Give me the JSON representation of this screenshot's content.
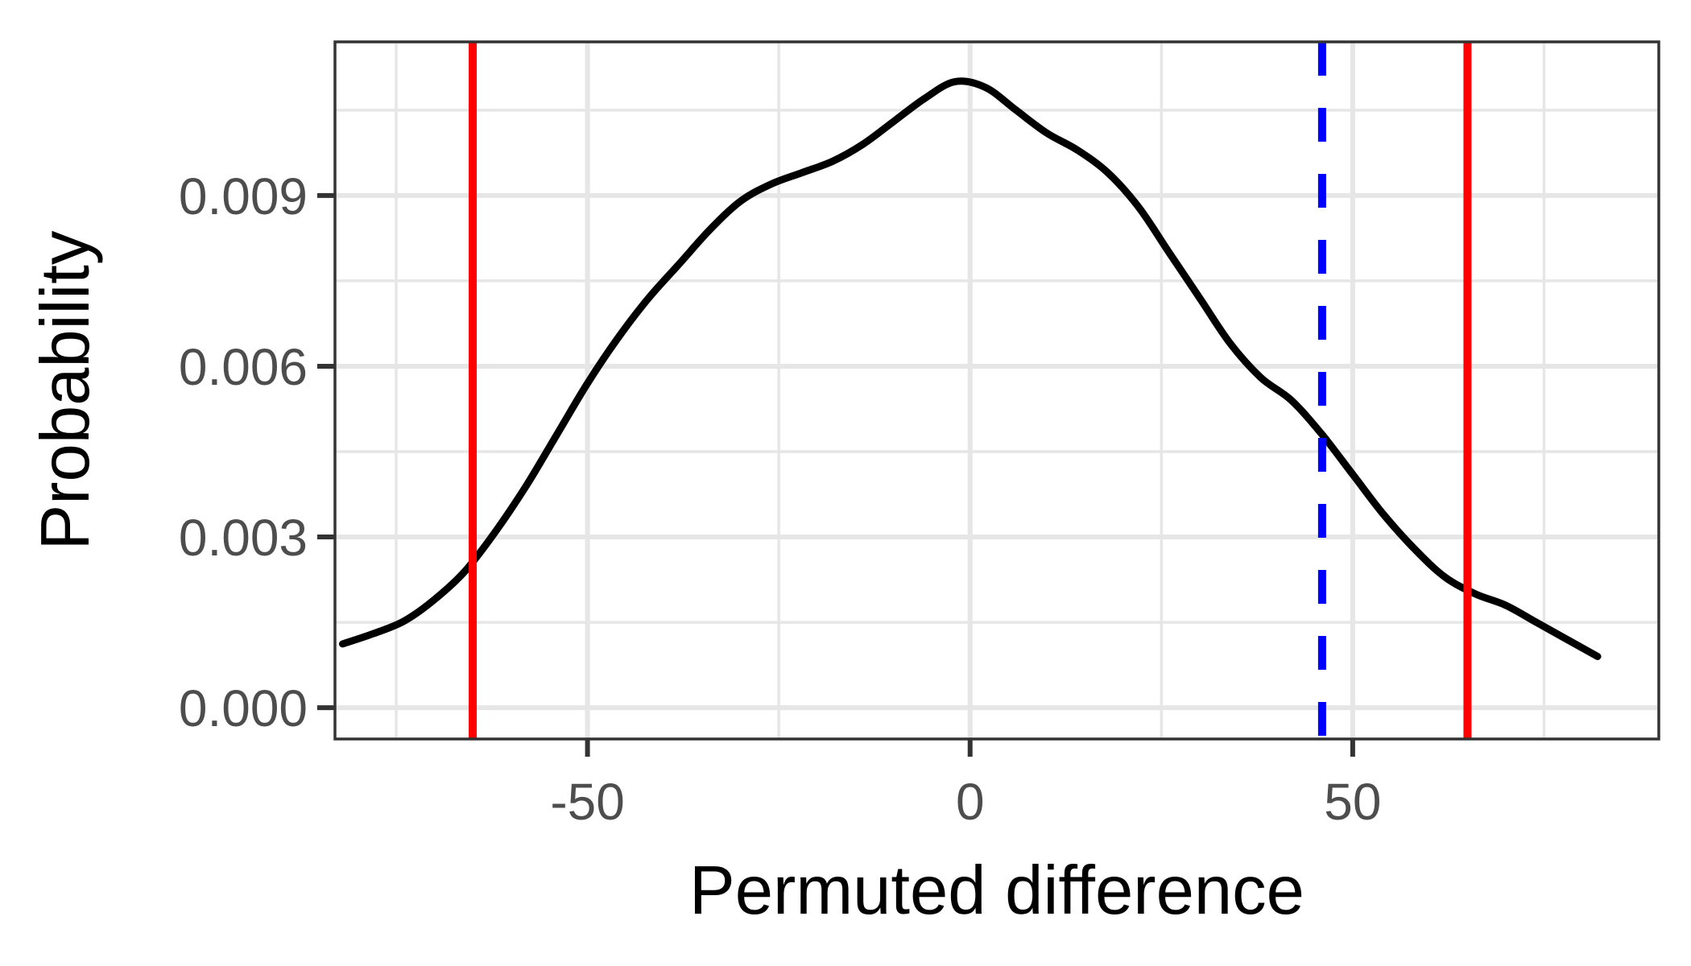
{
  "chart_data": {
    "type": "line",
    "title": "",
    "xlabel": "Permuted difference",
    "ylabel": "Probability",
    "xlim": [
      -83,
      90
    ],
    "ylim": [
      -0.00055,
      0.0117
    ],
    "x_ticks": [
      -50,
      0,
      50
    ],
    "x_tick_labels": [
      "-50",
      "0",
      "50"
    ],
    "x_minor_ticks": [
      -75,
      -25,
      25,
      75
    ],
    "y_ticks": [
      0.0,
      0.003,
      0.006,
      0.009
    ],
    "y_tick_labels": [
      "0.000",
      "0.003",
      "0.006",
      "0.009"
    ],
    "y_minor_ticks": [
      0.0015,
      0.0045,
      0.0075,
      0.0105
    ],
    "grid": true,
    "series": [
      {
        "color": "#000000",
        "x": [
          -82,
          -78,
          -74,
          -70,
          -66,
          -62,
          -58,
          -54,
          -50,
          -46,
          -42,
          -38,
          -34,
          -30,
          -26,
          -22,
          -18,
          -14,
          -10,
          -6,
          -2,
          2,
          6,
          10,
          14,
          18,
          22,
          26,
          30,
          34,
          38,
          42,
          46,
          50,
          54,
          58,
          62,
          66,
          70,
          74,
          78,
          82
        ],
        "values": [
          0.00112,
          0.0013,
          0.00152,
          0.0019,
          0.0024,
          0.0031,
          0.0039,
          0.0048,
          0.0057,
          0.0065,
          0.0072,
          0.0078,
          0.0084,
          0.0089,
          0.0092,
          0.0094,
          0.0096,
          0.0099,
          0.0103,
          0.0107,
          0.011,
          0.0109,
          0.0105,
          0.0101,
          0.0098,
          0.0094,
          0.0088,
          0.008,
          0.0072,
          0.0064,
          0.0058,
          0.0054,
          0.0048,
          0.0041,
          0.0034,
          0.0028,
          0.0023,
          0.002,
          0.0018,
          0.0015,
          0.0012,
          0.0009
        ]
      }
    ],
    "vlines": [
      {
        "x": -65,
        "color": "#ff0000",
        "style": "solid"
      },
      {
        "x": 65,
        "color": "#ff0000",
        "style": "solid"
      },
      {
        "x": 46,
        "color": "#0000ff",
        "style": "dashed"
      }
    ]
  }
}
